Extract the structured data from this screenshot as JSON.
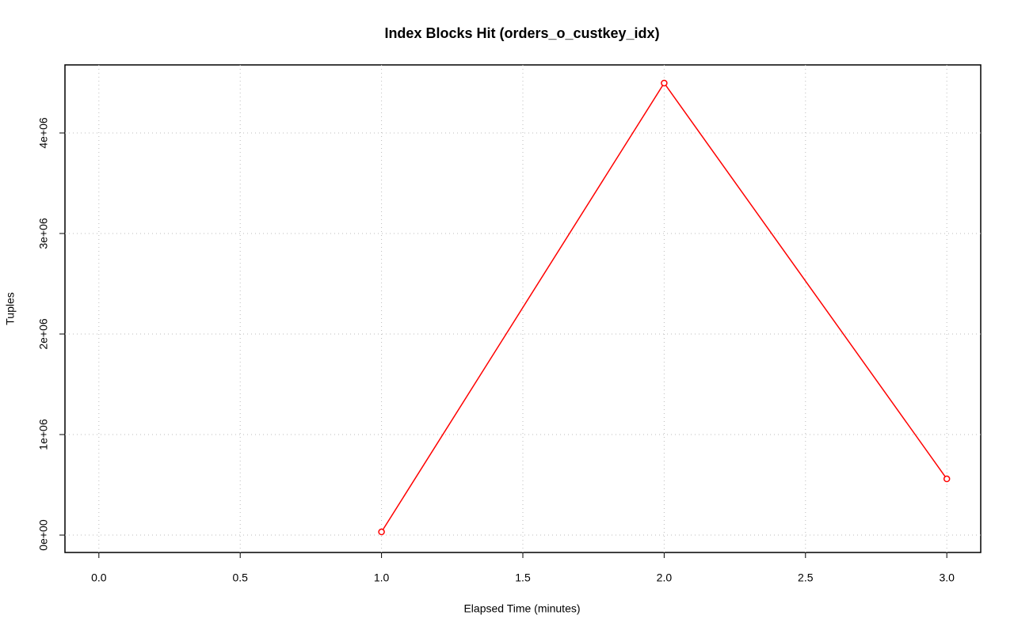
{
  "chart_data": {
    "type": "line",
    "title": "Index Blocks Hit (orders_o_custkey_idx)",
    "x_label": "Elapsed Time (minutes)",
    "y_label": "Tuples",
    "grid": true,
    "series": [
      {
        "color": "#ff0000",
        "x": [
          1,
          2,
          3
        ],
        "values": [
          31500,
          4496000,
          559000
        ]
      }
    ],
    "xlim": [
      -0.12,
      3.12
    ],
    "ylim": [
      -173000,
      4677000
    ],
    "xticks": [
      {
        "value": 0,
        "label": "0.0"
      },
      0.5,
      {
        "value": 1,
        "label": "1.0"
      },
      1.5,
      {
        "value": 2,
        "label": "2.0"
      },
      2.5,
      {
        "value": 3,
        "label": "3.0"
      }
    ],
    "yticks": [
      {
        "value": 0,
        "label": "0e+00"
      },
      {
        "value": 1000000,
        "label": "1e+06"
      },
      {
        "value": 2000000,
        "label": "2e+06"
      },
      {
        "value": 3000000,
        "label": "3e+06"
      },
      {
        "value": 4000000,
        "label": "4e+06"
      }
    ]
  }
}
